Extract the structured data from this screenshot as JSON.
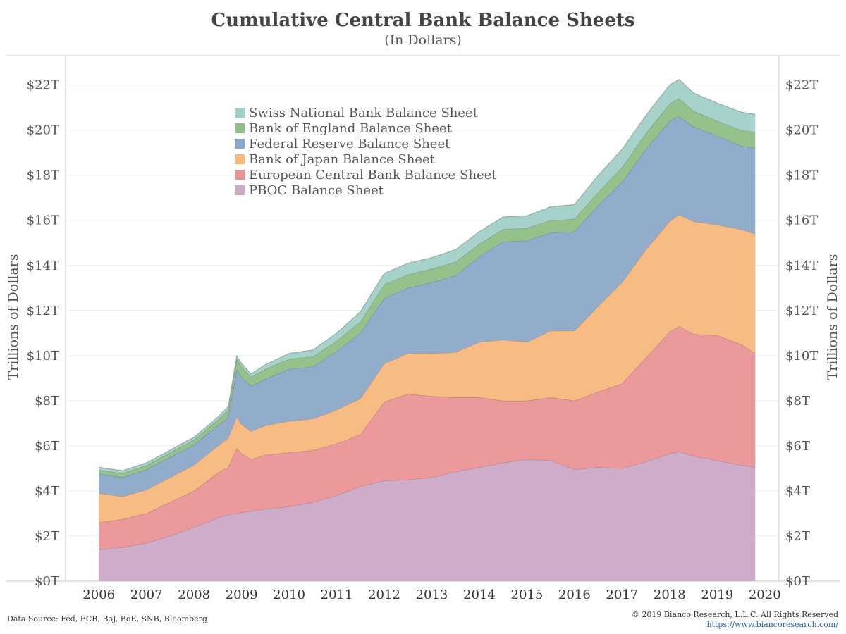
{
  "header": {
    "title": "Cumulative Central Bank Balance Sheets",
    "subtitle": "(In Dollars)"
  },
  "footer": {
    "source": "Data Source: Fed, ECB, BoJ, BoE, SNB, Bloomberg",
    "copyright": "© 2019 Bianco Research, L.L.C. All Rights Reserved",
    "url": "https://www.biancoresearch.com/"
  },
  "chart_data": {
    "type": "area",
    "stacked": true,
    "title": "Cumulative Central Bank Balance Sheets",
    "subtitle": "(In Dollars)",
    "ylabel": "Trillions of Dollars",
    "ylabel_right": "Trillions of Dollars",
    "xlim": [
      2005.3,
      2020.3
    ],
    "ylim": [
      0,
      23.3
    ],
    "x_ticks": [
      2006,
      2007,
      2008,
      2009,
      2010,
      2011,
      2012,
      2013,
      2014,
      2015,
      2016,
      2017,
      2018,
      2019,
      2020
    ],
    "x_tick_labels": [
      "2006",
      "2007",
      "2008",
      "2009",
      "2010",
      "2011",
      "2012",
      "2013",
      "2014",
      "2015",
      "2016",
      "2017",
      "2018",
      "2019",
      "2020"
    ],
    "y_ticks": [
      0,
      2,
      4,
      6,
      8,
      10,
      12,
      14,
      16,
      18,
      20,
      22
    ],
    "y_tick_labels": [
      "$0T",
      "$2T",
      "$4T",
      "$6T",
      "$8T",
      "$10T",
      "$12T",
      "$14T",
      "$16T",
      "$18T",
      "$20T",
      "$22T"
    ],
    "legend_position": "top-left",
    "grid": true,
    "x": [
      2006.0,
      2006.5,
      2007.0,
      2007.5,
      2008.0,
      2008.5,
      2008.72,
      2008.9,
      2009.0,
      2009.2,
      2009.5,
      2010.0,
      2010.5,
      2011.0,
      2011.5,
      2012.0,
      2012.5,
      2013.0,
      2013.5,
      2014.0,
      2014.5,
      2015.0,
      2015.5,
      2016.0,
      2016.5,
      2017.0,
      2017.5,
      2018.0,
      2018.2,
      2018.5,
      2019.0,
      2019.5,
      2019.8
    ],
    "series": [
      {
        "name": "PBOC Balance Sheet",
        "color": "#cca9c7",
        "values": [
          1.4,
          1.5,
          1.7,
          2.0,
          2.4,
          2.8,
          2.95,
          3.0,
          3.05,
          3.1,
          3.2,
          3.3,
          3.5,
          3.8,
          4.2,
          4.45,
          4.5,
          4.6,
          4.85,
          5.05,
          5.25,
          5.4,
          5.35,
          4.95,
          5.05,
          5.0,
          5.3,
          5.65,
          5.75,
          5.55,
          5.35,
          5.15,
          5.05
        ]
      },
      {
        "name": "European Central Bank Balance Sheet",
        "color": "#ea9395",
        "values": [
          1.2,
          1.25,
          1.3,
          1.5,
          1.6,
          2.0,
          2.1,
          2.9,
          2.6,
          2.3,
          2.4,
          2.4,
          2.3,
          2.3,
          2.3,
          3.5,
          3.8,
          3.6,
          3.3,
          3.1,
          2.75,
          2.6,
          2.8,
          3.05,
          3.35,
          3.75,
          4.6,
          5.4,
          5.55,
          5.4,
          5.55,
          5.35,
          5.05
        ]
      },
      {
        "name": "Bank of Japan Balance Sheet",
        "color": "#f5b87d",
        "values": [
          1.3,
          1.0,
          1.05,
          1.1,
          1.15,
          1.2,
          1.3,
          1.4,
          1.3,
          1.25,
          1.3,
          1.4,
          1.4,
          1.5,
          1.6,
          1.7,
          1.8,
          1.9,
          2.0,
          2.45,
          2.7,
          2.6,
          2.95,
          3.1,
          3.8,
          4.5,
          4.8,
          4.9,
          4.95,
          5.0,
          4.9,
          5.1,
          5.3
        ]
      },
      {
        "name": "Federal Reserve Balance Sheet",
        "color": "#8ca8c9",
        "values": [
          0.85,
          0.85,
          0.9,
          0.9,
          0.9,
          0.9,
          0.9,
          2.1,
          2.1,
          2.0,
          2.05,
          2.3,
          2.3,
          2.6,
          2.9,
          2.9,
          2.9,
          3.15,
          3.4,
          3.8,
          4.35,
          4.5,
          4.35,
          4.4,
          4.45,
          4.45,
          4.45,
          4.45,
          4.35,
          4.2,
          3.95,
          3.7,
          3.8
        ]
      },
      {
        "name": "Bank of England Balance Sheet",
        "color": "#8fbf85",
        "values": [
          0.18,
          0.18,
          0.18,
          0.2,
          0.22,
          0.25,
          0.35,
          0.45,
          0.45,
          0.4,
          0.45,
          0.45,
          0.45,
          0.45,
          0.5,
          0.6,
          0.6,
          0.6,
          0.6,
          0.55,
          0.55,
          0.55,
          0.55,
          0.55,
          0.6,
          0.65,
          0.7,
          0.75,
          0.8,
          0.7,
          0.65,
          0.7,
          0.7
        ]
      },
      {
        "name": "Swiss National Bank Balance Sheet",
        "color": "#a2cfc8",
        "values": [
          0.12,
          0.12,
          0.12,
          0.12,
          0.12,
          0.12,
          0.15,
          0.15,
          0.15,
          0.15,
          0.2,
          0.25,
          0.3,
          0.35,
          0.45,
          0.5,
          0.5,
          0.5,
          0.55,
          0.55,
          0.55,
          0.55,
          0.6,
          0.65,
          0.75,
          0.8,
          0.8,
          0.85,
          0.85,
          0.8,
          0.8,
          0.8,
          0.8
        ]
      }
    ]
  }
}
